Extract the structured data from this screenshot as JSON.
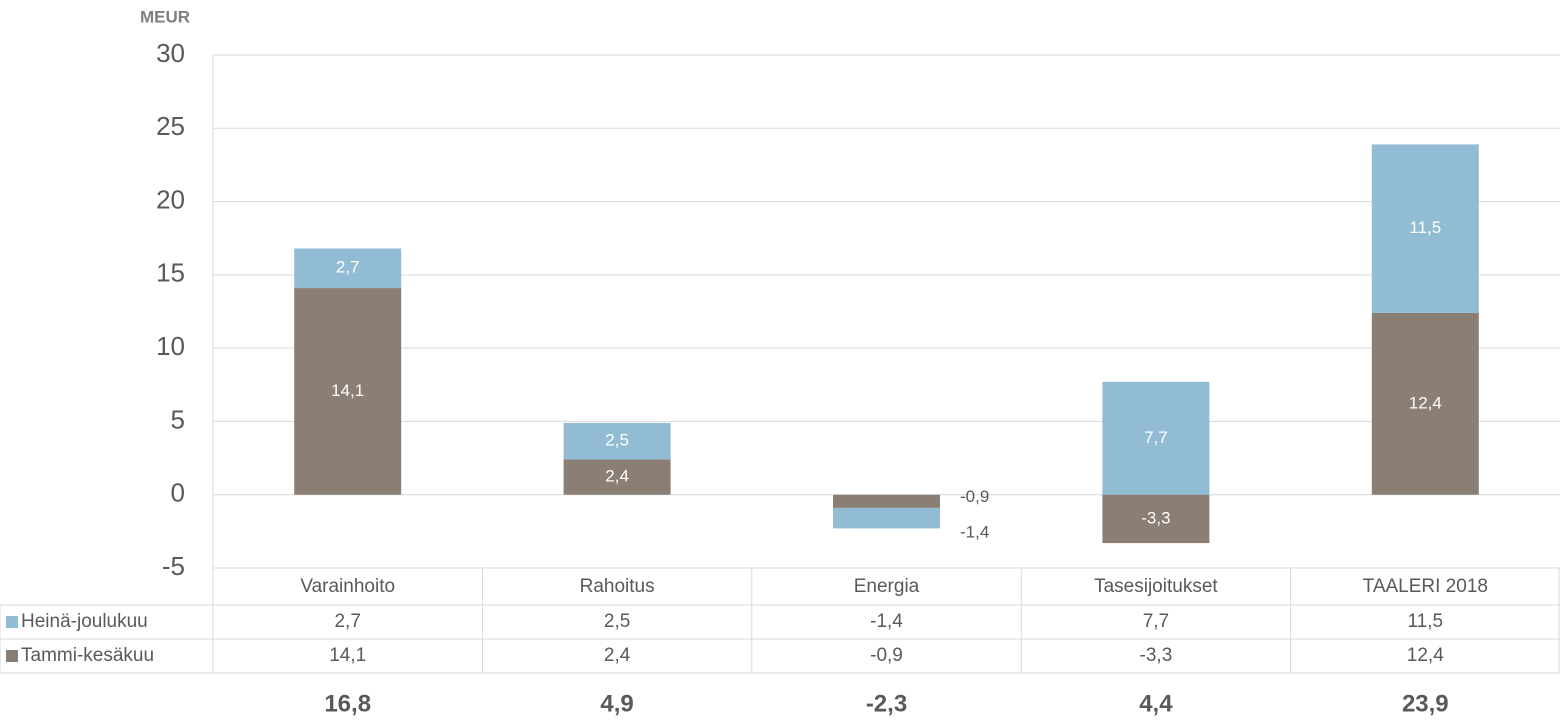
{
  "chart_data": {
    "type": "stacked_bar",
    "y_label": "MEUR",
    "categories": [
      "Varainhoito",
      "Rahoitus",
      "Energia",
      "Tasesijoitukset",
      "TAALERI 2018"
    ],
    "series": [
      {
        "name": "Heinä-joulukuu",
        "color": "#92bcd3",
        "values": [
          2.7,
          2.5,
          -1.4,
          7.7,
          11.5
        ],
        "value_labels": [
          "2,7",
          "2,5",
          "-1,4",
          "7,7",
          "11,5"
        ]
      },
      {
        "name": "Tammi-kesäkuu",
        "color": "#8b7e74",
        "values": [
          14.1,
          2.4,
          -0.9,
          -3.3,
          12.4
        ],
        "value_labels": [
          "14,1",
          "2,4",
          "-0,9",
          "-3,3",
          "12,4"
        ]
      }
    ],
    "totals": [
      16.8,
      4.9,
      -2.3,
      4.4,
      23.9
    ],
    "total_labels": [
      "16,8",
      "4,9",
      "-2,3",
      "4,4",
      "23,9"
    ],
    "ylim": [
      -5,
      30
    ],
    "yticks": [
      -5,
      0,
      5,
      10,
      15,
      20,
      25,
      30
    ],
    "grid": true
  }
}
